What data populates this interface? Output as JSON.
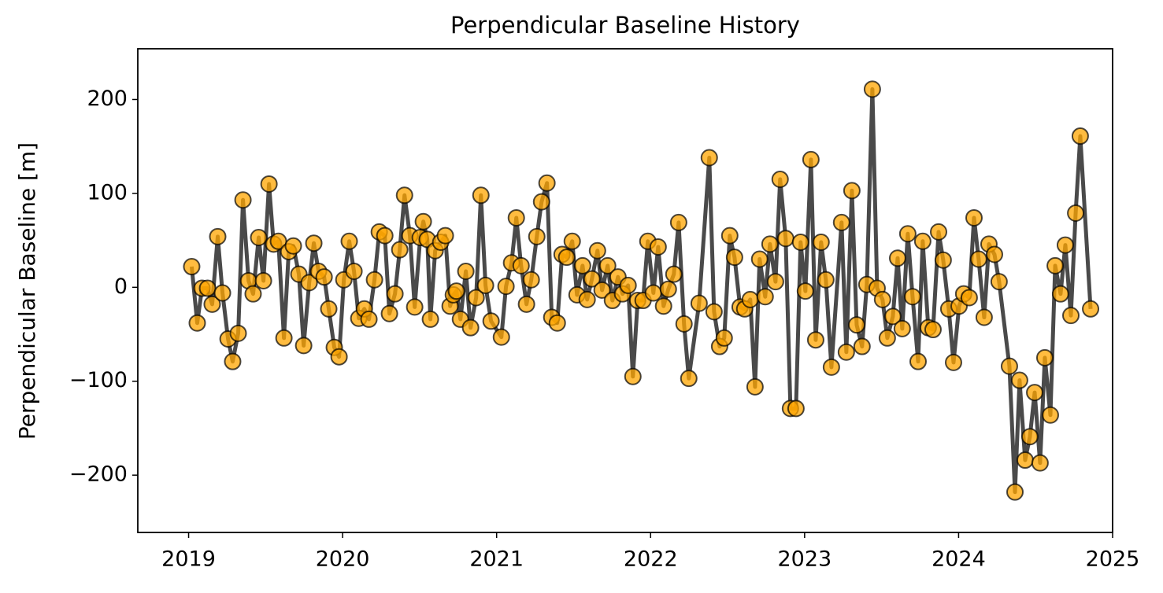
{
  "chart_data": {
    "type": "line",
    "title": "Perpendicular Baseline History",
    "y_label": "Perpendicular Baseline [m]",
    "x": [
      2019.02,
      2019.056,
      2019.087,
      2019.123,
      2019.153,
      2019.189,
      2019.22,
      2019.256,
      2019.286,
      2019.322,
      2019.353,
      2019.389,
      2019.419,
      2019.455,
      2019.486,
      2019.522,
      2019.552,
      2019.583,
      2019.619,
      2019.65,
      2019.68,
      2019.716,
      2019.747,
      2019.783,
      2019.813,
      2019.844,
      2019.88,
      2019.91,
      2019.946,
      2019.977,
      2020.008,
      2020.043,
      2020.074,
      2020.105,
      2020.141,
      2020.171,
      2020.207,
      2020.238,
      2020.274,
      2020.304,
      2020.34,
      2020.371,
      2020.402,
      2020.437,
      2020.468,
      2020.504,
      2020.524,
      2020.55,
      2020.57,
      2020.601,
      2020.637,
      2020.667,
      2020.698,
      2020.719,
      2020.739,
      2020.765,
      2020.8,
      2020.831,
      2020.867,
      2020.898,
      2020.928,
      2020.964,
      2021.031,
      2021.061,
      2021.097,
      2021.128,
      2021.159,
      2021.194,
      2021.225,
      2021.261,
      2021.292,
      2021.327,
      2021.358,
      2021.394,
      2021.425,
      2021.455,
      2021.491,
      2021.522,
      2021.558,
      2021.588,
      2021.619,
      2021.655,
      2021.685,
      2021.721,
      2021.752,
      2021.788,
      2021.818,
      2021.854,
      2021.885,
      2021.916,
      2021.951,
      2021.982,
      2022.018,
      2022.049,
      2022.084,
      2022.115,
      2022.151,
      2022.182,
      2022.217,
      2022.248,
      2022.315,
      2022.381,
      2022.412,
      2022.448,
      2022.478,
      2022.514,
      2022.545,
      2022.581,
      2022.611,
      2022.647,
      2022.678,
      2022.708,
      2022.744,
      2022.775,
      2022.811,
      2022.841,
      2022.877,
      2022.908,
      2022.944,
      2022.974,
      2023.005,
      2023.041,
      2023.072,
      2023.107,
      2023.138,
      2023.174,
      2023.24,
      2023.271,
      2023.307,
      2023.338,
      2023.373,
      2023.404,
      2023.44,
      2023.471,
      2023.506,
      2023.537,
      2023.573,
      2023.604,
      2023.634,
      2023.67,
      2023.701,
      2023.737,
      2023.767,
      2023.803,
      2023.834,
      2023.87,
      2023.9,
      2023.936,
      2023.967,
      2024.003,
      2024.033,
      2024.069,
      2024.1,
      2024.13,
      2024.166,
      2024.197,
      2024.233,
      2024.263,
      2024.33,
      2024.366,
      2024.396,
      2024.432,
      2024.463,
      2024.494,
      2024.529,
      2024.56,
      2024.596,
      2024.627,
      2024.662,
      2024.693,
      2024.729,
      2024.76,
      2024.79,
      2024.857
    ],
    "values": [
      22,
      -38,
      -1,
      -1,
      -18,
      54,
      -6,
      -55,
      -79,
      -49,
      93,
      7,
      -7,
      53,
      7,
      110,
      46,
      49,
      -54,
      38,
      44,
      14,
      -62,
      5,
      47,
      17,
      11,
      -23,
      -64,
      -74,
      8,
      49,
      17,
      -33,
      -23,
      -34,
      8,
      59,
      55,
      -28,
      -7,
      40,
      98,
      55,
      -21,
      53,
      70,
      51,
      -34,
      39,
      48,
      55,
      -20,
      -8,
      -4,
      -34,
      17,
      -43,
      -11,
      98,
      2,
      -36,
      -53,
      1,
      26,
      74,
      23,
      -18,
      8,
      54,
      91,
      111,
      -32,
      -38,
      35,
      32,
      49,
      -8,
      23,
      -13,
      9,
      39,
      -3,
      23,
      -14,
      11,
      -7,
      2,
      -95,
      -14,
      -14,
      49,
      -6,
      43,
      -20,
      -2,
      14,
      69,
      -39,
      -97,
      -17,
      138,
      -26,
      -63,
      -54,
      55,
      32,
      -21,
      -23,
      -13,
      -106,
      30,
      -10,
      46,
      6,
      115,
      52,
      -129,
      -129,
      48,
      -4,
      136,
      -56,
      48,
      8,
      -85,
      69,
      -69,
      103,
      -40,
      -63,
      3,
      211,
      -1,
      -13,
      -54,
      -31,
      31,
      -44,
      57,
      -10,
      -79,
      49,
      -43,
      -45,
      59,
      29,
      -23,
      -80,
      -20,
      -7,
      -11,
      74,
      30,
      -32,
      46,
      35,
      6,
      -84,
      -218,
      -99,
      -184,
      -159,
      -112,
      -187,
      -75,
      -136,
      23,
      -7,
      45,
      -30,
      79,
      161,
      -23
    ],
    "color": "#404040",
    "marker_color": "#ffa500",
    "xlim": [
      2018.67,
      2025
    ],
    "xticks": [
      2019,
      2020,
      2021,
      2022,
      2023,
      2024,
      2025
    ],
    "ylim": [
      -261,
      254
    ],
    "yticks": [
      {
        "value": -200,
        "label": "−200"
      },
      {
        "value": -100,
        "label": "−100"
      },
      0,
      100,
      200
    ],
    "grid": false
  }
}
